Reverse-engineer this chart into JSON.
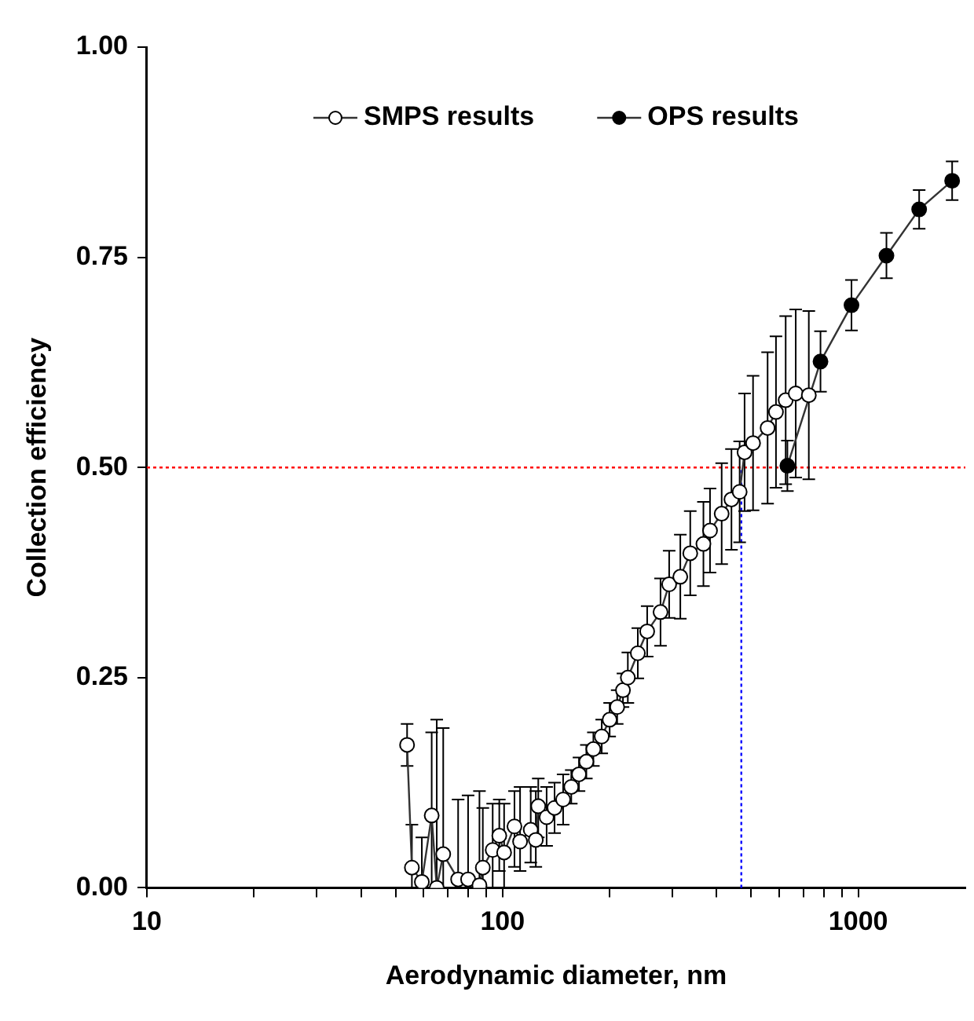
{
  "chart_data": {
    "type": "line",
    "xlabel": "Aerodynamic diameter, nm",
    "ylabel": "Collection efficiency",
    "log": "x",
    "xlim": [
      10,
      2000
    ],
    "xticks": [
      10,
      {
        "value": 20,
        "label": null
      },
      {
        "value": 30,
        "label": null
      },
      {
        "value": 40,
        "label": null
      },
      {
        "value": 50,
        "label": null
      },
      {
        "value": 60,
        "label": null
      },
      {
        "value": 70,
        "label": null
      },
      {
        "value": 80,
        "label": null
      },
      {
        "value": 90,
        "label": null
      },
      100,
      {
        "value": 200,
        "label": null
      },
      {
        "value": 300,
        "label": null
      },
      {
        "value": 400,
        "label": null
      },
      {
        "value": 500,
        "label": null
      },
      {
        "value": 600,
        "label": null
      },
      {
        "value": 700,
        "label": null
      },
      {
        "value": 800,
        "label": null
      },
      {
        "value": 900,
        "label": null
      },
      1000
    ],
    "ylim": [
      0,
      1
    ],
    "yticks": [
      {
        "value": 0,
        "label": "0.00"
      },
      {
        "value": 0.25,
        "label": "0.25"
      },
      {
        "value": 0.5,
        "label": "0.50"
      },
      {
        "value": 0.75,
        "label": "0.75"
      },
      {
        "value": 1,
        "label": "1.00"
      }
    ],
    "grid": false,
    "legend": "top",
    "marker": "circle",
    "line_style": "solid",
    "ref_lines": [
      {
        "axis": "y",
        "value": 0.5,
        "color": "#ff0000",
        "line_style": "dotted"
      },
      {
        "axis": "x",
        "value": 469,
        "color": "#0000ff",
        "line_style": "dotted"
      }
    ],
    "series": [
      {
        "name": "SMPS results",
        "color": "#ffffff",
        "x": [
          53.9,
          55.6,
          59.3,
          63.2,
          65.3,
          68.1,
          75,
          80,
          86.1,
          88,
          93.8,
          97.9,
          101,
          108,
          112,
          120,
          124,
          126,
          133,
          140,
          148,
          156,
          164,
          172,
          180,
          190,
          200,
          210,
          218,
          225,
          240,
          255,
          278,
          294,
          316,
          337,
          367,
          383,
          413,
          440,
          464,
          479,
          506,
          556,
          587,
          625,
          667,
          726
        ],
        "values": [
          0.17,
          0.024,
          0.007,
          0.086,
          0,
          0.04,
          0.01,
          0.01,
          0.003,
          0.024,
          0.045,
          0.062,
          0.042,
          0.073,
          0.055,
          0.069,
          0.057,
          0.097,
          0.084,
          0.095,
          0.105,
          0.12,
          0.135,
          0.15,
          0.165,
          0.18,
          0.2,
          0.215,
          0.235,
          0.25,
          0.279,
          0.305,
          0.328,
          0.361,
          0.37,
          0.398,
          0.409,
          0.425,
          0.445,
          0.462,
          0.471,
          0.518,
          0.529,
          0.547,
          0.566,
          0.58,
          0.588,
          0.586
        ],
        "errors": [
          0.025,
          [
            0,
            0.075
          ],
          [
            0,
            0.06
          ],
          [
            0,
            0.185
          ],
          [
            0,
            0.2
          ],
          [
            0,
            0.19
          ],
          [
            0,
            0.105
          ],
          [
            0,
            0.11
          ],
          [
            0,
            0.115
          ],
          [
            0,
            0.095
          ],
          [
            0,
            0.1
          ],
          [
            0.02,
            0.105
          ],
          [
            0,
            0.1
          ],
          [
            0.025,
            0.115
          ],
          [
            0.02,
            0.12
          ],
          [
            0.03,
            0.12
          ],
          [
            0.025,
            0.115
          ],
          [
            0.06,
            0.13
          ],
          [
            0.05,
            0.12
          ],
          0.03,
          0.03,
          0.02,
          0.02,
          0.02,
          0.02,
          0.02,
          0.02,
          0.02,
          0.02,
          0.03,
          0.03,
          0.03,
          0.04,
          0.04,
          0.05,
          0.05,
          0.05,
          0.05,
          0.06,
          0.06,
          0.06,
          0.07,
          0.08,
          0.09,
          0.09,
          0.1,
          0.1,
          0.1
        ]
      },
      {
        "name": "OPS results",
        "color": "#000000",
        "x": [
          632,
          783,
          957,
          1200,
          1483,
          1836
        ],
        "values": [
          0.502,
          0.626,
          0.693,
          0.752,
          0.807,
          0.841
        ],
        "errors": [
          0.03,
          0.036,
          0.03,
          0.027,
          0.023,
          0.023
        ]
      }
    ]
  }
}
